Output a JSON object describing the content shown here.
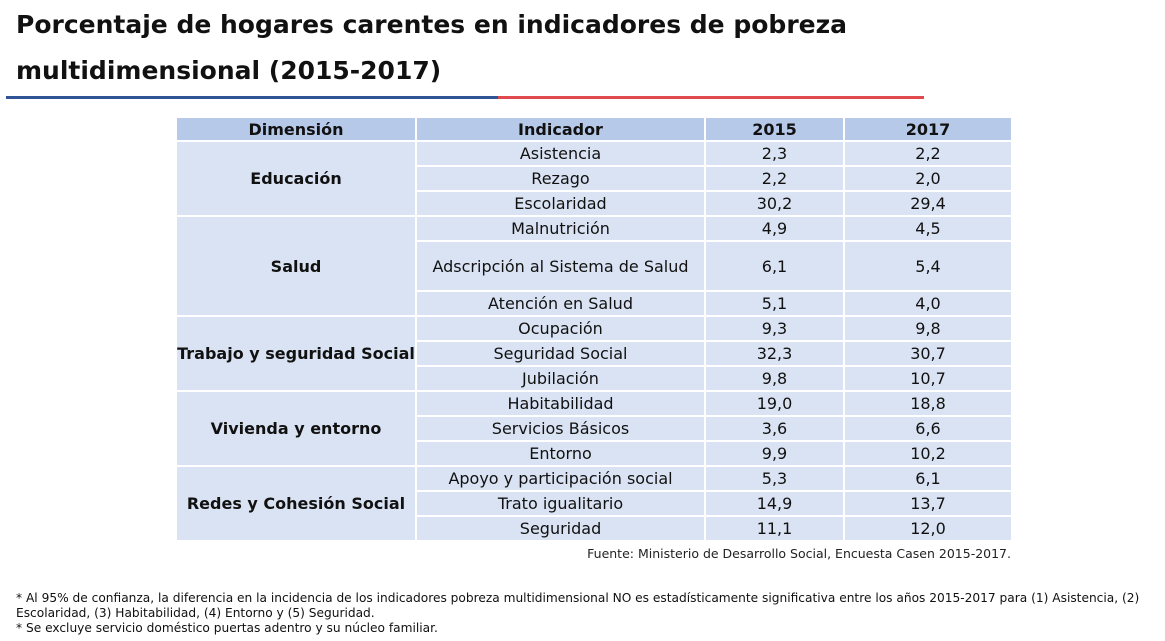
{
  "title": "Porcentaje de hogares carentes en indicadores de pobreza multidimensional (2015-2017)",
  "table": {
    "headers": [
      "Dimensión",
      "Indicador",
      "2015",
      "2017"
    ],
    "groups": [
      {
        "dimension": "Educación",
        "rows": [
          {
            "indicador": "Asistencia",
            "y2015": "2,3",
            "y2017": "2,2"
          },
          {
            "indicador": "Rezago",
            "y2015": "2,2",
            "y2017": "2,0"
          },
          {
            "indicador": "Escolaridad",
            "y2015": "30,2",
            "y2017": "29,4"
          }
        ]
      },
      {
        "dimension": "Salud",
        "rows": [
          {
            "indicador": "Malnutrición",
            "y2015": "4,9",
            "y2017": "4,5"
          },
          {
            "indicador": "Adscripción al Sistema de Salud",
            "y2015": "6,1",
            "y2017": "5,4"
          },
          {
            "indicador": "Atención en Salud",
            "y2015": "5,1",
            "y2017": "4,0"
          }
        ]
      },
      {
        "dimension": "Trabajo y seguridad Social",
        "rows": [
          {
            "indicador": "Ocupación",
            "y2015": "9,3",
            "y2017": "9,8"
          },
          {
            "indicador": "Seguridad Social",
            "y2015": "32,3",
            "y2017": "30,7"
          },
          {
            "indicador": "Jubilación",
            "y2015": "9,8",
            "y2017": "10,7"
          }
        ]
      },
      {
        "dimension": "Vivienda y entorno",
        "rows": [
          {
            "indicador": "Habitabilidad",
            "y2015": "19,0",
            "y2017": "18,8"
          },
          {
            "indicador": "Servicios Básicos",
            "y2015": "3,6",
            "y2017": "6,6"
          },
          {
            "indicador": "Entorno",
            "y2015": "9,9",
            "y2017": "10,2"
          }
        ]
      },
      {
        "dimension": "Redes y Cohesión Social",
        "rows": [
          {
            "indicador": "Apoyo y participación social",
            "y2015": "5,3",
            "y2017": "6,1"
          },
          {
            "indicador": "Trato igualitario",
            "y2015": "14,9",
            "y2017": "13,7"
          },
          {
            "indicador": "Seguridad",
            "y2015": "11,1",
            "y2017": "12,0"
          }
        ]
      }
    ]
  },
  "source": "Fuente: Ministerio de Desarrollo Social, Encuesta Casen 2015-2017.",
  "notes": [
    "* Al 95% de confianza, la diferencia en la incidencia de los indicadores pobreza multidimensional NO es estadísticamente significativa entre los años 2015-2017 para (1) Asistencia, (2) Escolaridad, (3) Habitabilidad, (4) Entorno y (5) Seguridad.",
    "* Se excluye servicio doméstico puertas adentro y su núcleo familiar."
  ],
  "colors": {
    "header_bg": "#b7c9e8",
    "cell_bg": "#dae3f3",
    "rule_blue": "#2f5597",
    "rule_red": "#e04a4f"
  }
}
